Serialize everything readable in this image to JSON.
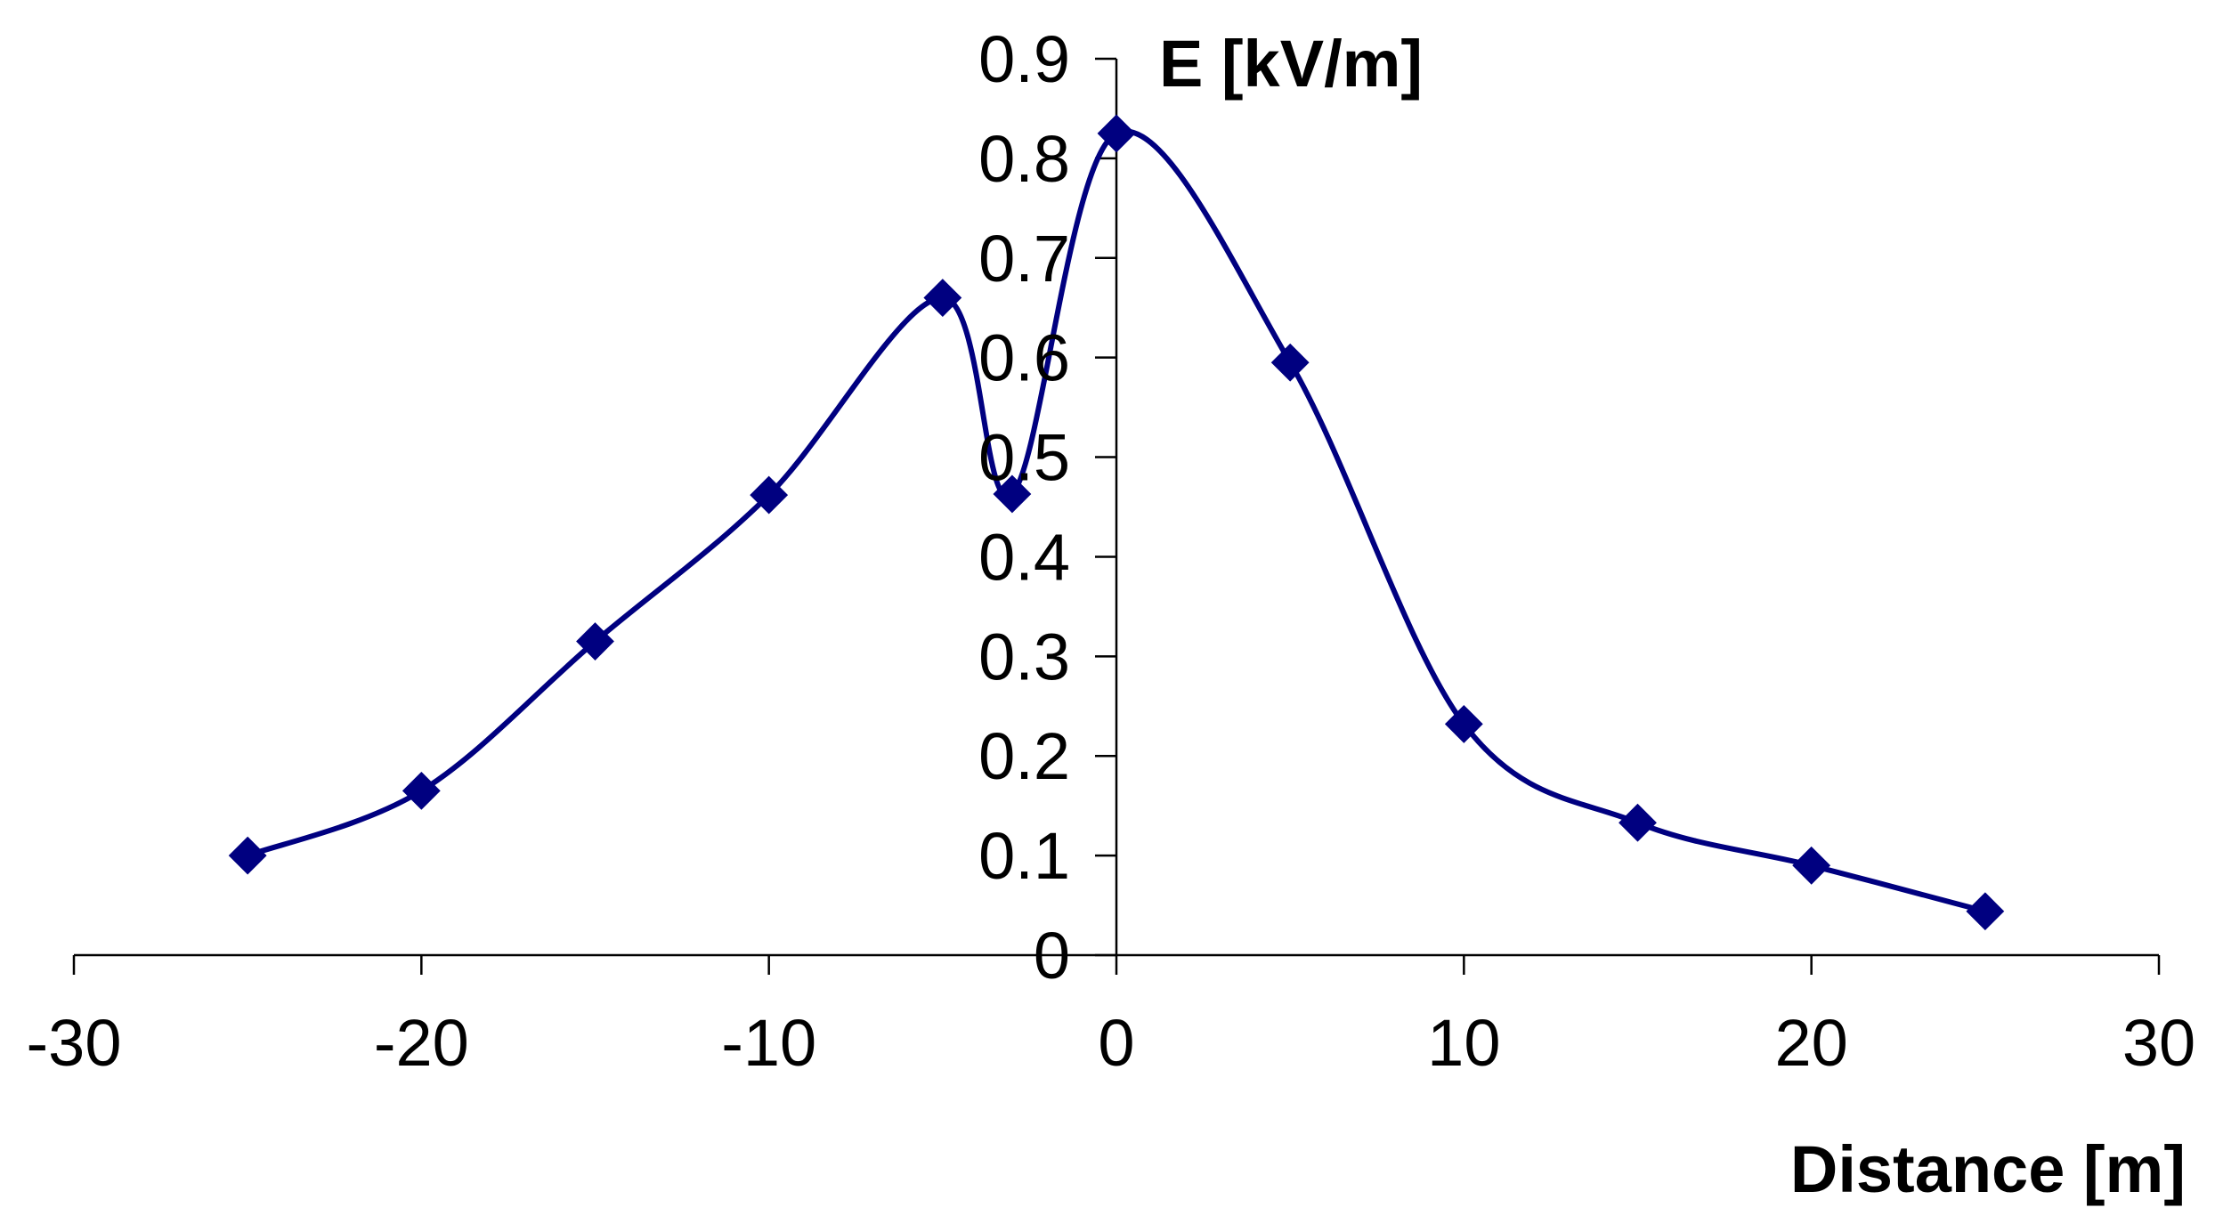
{
  "chart_data": {
    "type": "line",
    "title": "",
    "xlabel": "Distance [m]",
    "ylabel": "E [kV/m]",
    "xlim": [
      -30,
      30
    ],
    "ylim": [
      0,
      0.9
    ],
    "x_ticks": [
      -30,
      -20,
      -10,
      0,
      10,
      20,
      30
    ],
    "y_ticks": [
      0,
      0.1,
      0.2,
      0.3,
      0.4,
      0.5,
      0.6,
      0.7,
      0.8,
      0.9
    ],
    "x_tick_labels": [
      "-30",
      "-20",
      "-10",
      "0",
      "10",
      "20",
      "30"
    ],
    "y_tick_labels": [
      "0",
      "0.1",
      "0.2",
      "0.3",
      "0.4",
      "0.5",
      "0.6",
      "0.7",
      "0.8",
      "0.9"
    ],
    "grid": false,
    "smooth": true,
    "marker": "diamond",
    "line_color": "#000080",
    "marker_color": "#000080",
    "axis_color": "#000000",
    "series": [
      {
        "x": [
          -25,
          -20,
          -15,
          -10,
          -5,
          -3,
          0,
          5,
          10,
          15,
          20,
          25
        ],
        "y": [
          0.1,
          0.165,
          0.315,
          0.462,
          0.66,
          0.463,
          0.825,
          0.595,
          0.232,
          0.133,
          0.09,
          0.044
        ]
      }
    ]
  }
}
